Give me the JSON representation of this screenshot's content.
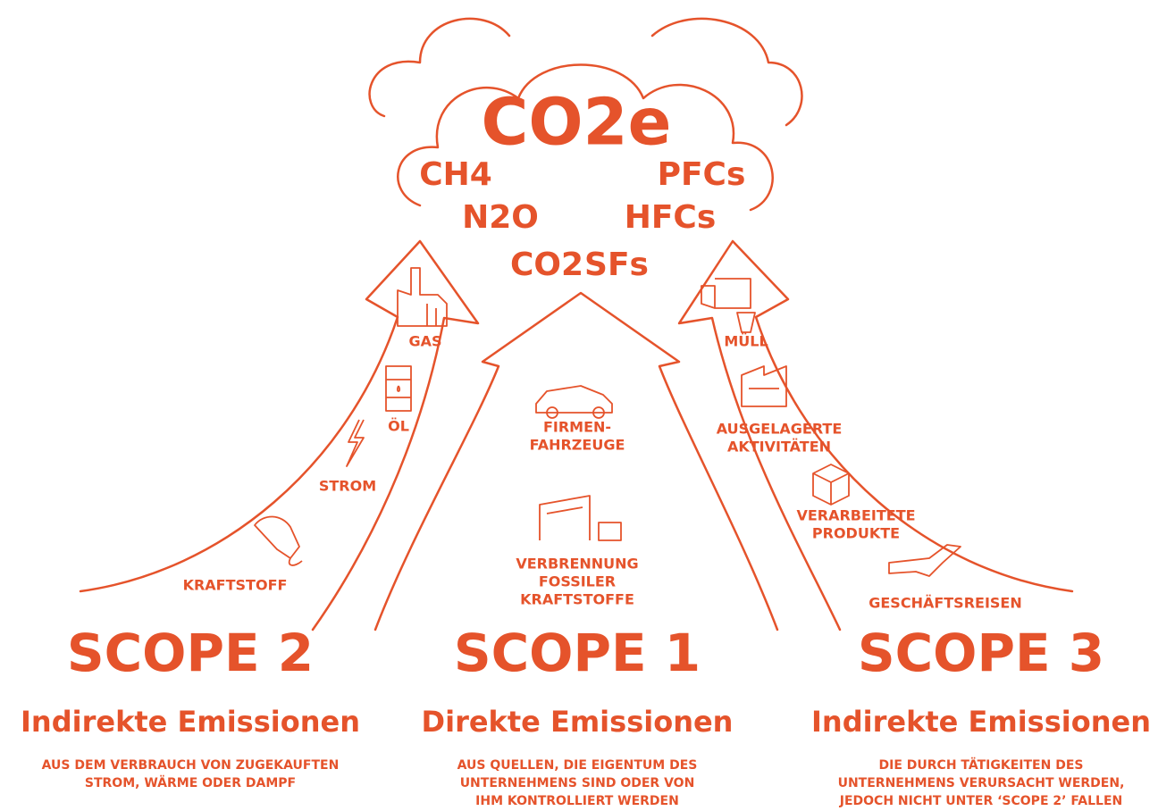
{
  "cloud": {
    "title": "CO2e",
    "gases": [
      "CH4",
      "PFCs",
      "N2O",
      "HFCs",
      "CO2",
      "SFs"
    ]
  },
  "scopes": [
    {
      "title": "SCOPE 2",
      "subtitle": "Indirekte Emissionen",
      "description": [
        "AUS DEM VERBRAUCH VON ZUGEKAUFTEN",
        "STROM, WÄRME ODER DAMPF"
      ],
      "items": [
        [
          "GAS"
        ],
        [
          "ÖL"
        ],
        [
          "STROM"
        ],
        [
          "KRAFTSTOFF"
        ]
      ]
    },
    {
      "title": "SCOPE 1",
      "subtitle": "Direkte Emissionen",
      "description": [
        "AUS QUELLEN, DIE EIGENTUM DES",
        "UNTERNEHMENS SIND ODER VON",
        "IHM KONTROLLIERT WERDEN"
      ],
      "items": [
        [
          "FIRMEN-",
          "FAHRZEUGE"
        ],
        [
          "VERBRENNUNG",
          "FOSSILER",
          "KRAFTSTOFFE"
        ]
      ]
    },
    {
      "title": "SCOPE 3",
      "subtitle": "Indirekte Emissionen",
      "description": [
        "DIE DURCH TÄTIGKEITEN DES",
        "UNTERNEHMENS VERURSACHT WERDEN,",
        "JEDOCH NICHT UNTER ‘SCOPE 2’ FALLEN"
      ],
      "items": [
        [
          "MÜLL"
        ],
        [
          "AUSGELAGERTE",
          "AKTIVITÄTEN"
        ],
        [
          "VERARBEITETE",
          "PRODUKTE"
        ],
        [
          "GESCHÄFTSREISEN"
        ]
      ]
    }
  ]
}
